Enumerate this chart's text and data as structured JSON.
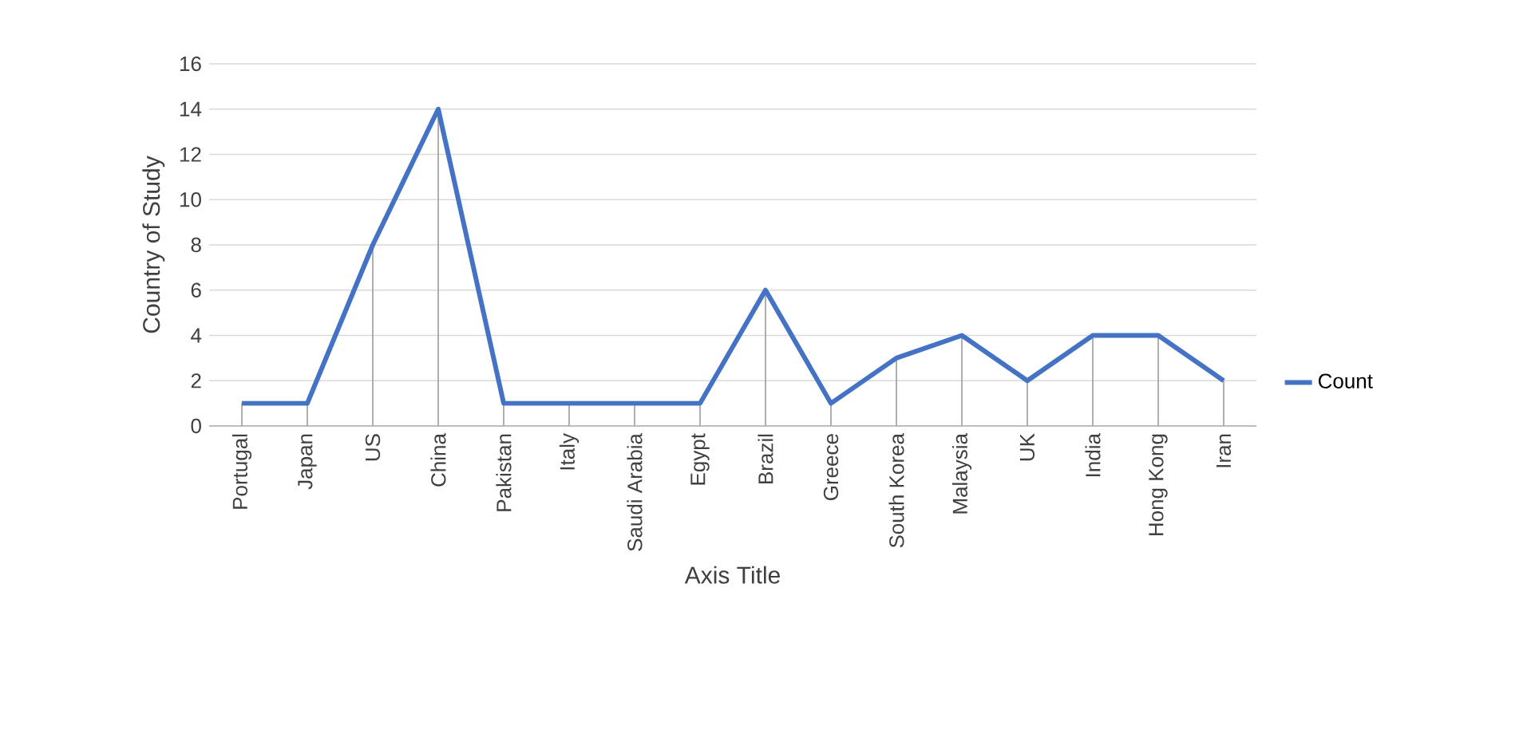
{
  "chart_data": {
    "type": "line",
    "xlabel": "Axis Title",
    "ylabel": "Country of Study",
    "categories": [
      "Portugal",
      "Japan",
      "US",
      "China",
      "Pakistan",
      "Italy",
      "Saudi Arabia",
      "Egypt",
      "Brazil",
      "Greece",
      "South Korea",
      "Malaysia",
      "UK",
      "India",
      "Hong Kong",
      "Iran"
    ],
    "series": [
      {
        "name": "Count",
        "color": "#4472c4",
        "values": [
          1,
          1,
          8,
          14,
          1,
          1,
          1,
          1,
          6,
          1,
          3,
          4,
          2,
          4,
          4,
          2
        ],
        "errors": [
          [
            0,
            1
          ],
          [
            0,
            1
          ],
          [
            0,
            8
          ],
          [
            0,
            14
          ],
          [
            0,
            1
          ],
          [
            0,
            1
          ],
          [
            0,
            1
          ],
          [
            0,
            1
          ],
          [
            0,
            6
          ],
          [
            0,
            1
          ],
          [
            0,
            3
          ],
          [
            0,
            4
          ],
          [
            0,
            2
          ],
          [
            0,
            4
          ],
          [
            0,
            4
          ],
          [
            0,
            2
          ]
        ]
      }
    ],
    "ylim": [
      0,
      16
    ],
    "yticks": [
      0,
      2,
      4,
      6,
      8,
      10,
      12,
      14,
      16
    ],
    "grid": "y",
    "legend": "right",
    "marker": "none",
    "line_style": "solid"
  }
}
